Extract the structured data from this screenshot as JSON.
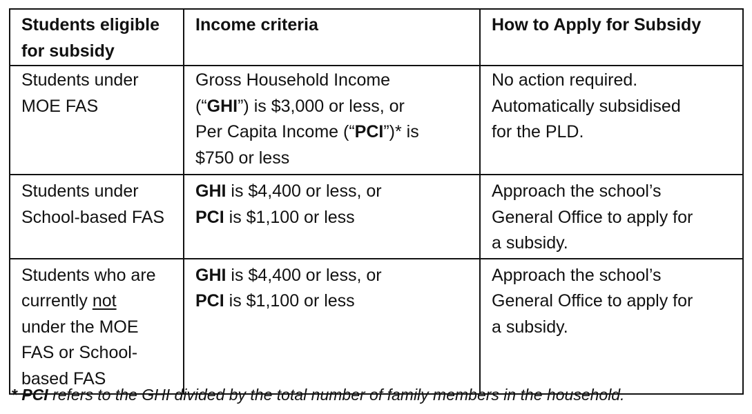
{
  "table": {
    "headers": [
      [
        "Students  eligible",
        "for subsidy"
      ],
      [
        "Income criteria"
      ],
      [
        "How to Apply for Subsidy"
      ]
    ],
    "rows": [
      {
        "students": [
          "Students under",
          "MOE FAS"
        ],
        "income": [
          [
            "Gross Household Income"
          ],
          [
            "(“",
            "GHI",
            "”) is $3,000 or less, or"
          ],
          [
            "Per Capita Income (“",
            "PCI",
            "”)* is"
          ],
          [
            "$750 or less"
          ]
        ],
        "apply": [
          "No action required.",
          "Automatically subsidised",
          "for the PLD."
        ]
      },
      {
        "students": [
          "Students under",
          "School-based FAS"
        ],
        "income": [
          [
            "GHI",
            " is $4,400 or less, or"
          ],
          [
            "PCI",
            " is $1,100 or less"
          ]
        ],
        "apply": [
          "Approach the school’s",
          "General Office to apply for",
          "a subsidy."
        ]
      },
      {
        "students": [
          "Students who are",
          "currently ",
          "not",
          "under the MOE",
          "FAS or School-",
          "based FAS"
        ],
        "income": [
          [
            "GHI",
            " is $4,400 or less, or"
          ],
          [
            "PCI",
            " is $1,100 or less"
          ]
        ],
        "apply": [
          "Approach the school’s",
          "General Office to apply for",
          "a subsidy."
        ]
      }
    ]
  },
  "footnote": {
    "prefix": "* ",
    "term": "PCI",
    "text": " refers to the GHI divided by the total number of family members in the household."
  }
}
